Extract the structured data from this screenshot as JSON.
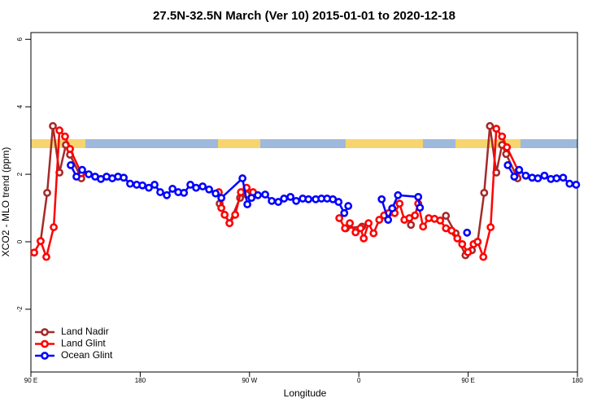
{
  "chart_data": {
    "type": "line",
    "title": "27.5N-32.5N March (Ver 10)   2015-01-01 to 2020-12-18",
    "x_label": "Longitude",
    "y_label": "XCO2 - MLO trend (ppm)",
    "xlim": [
      90,
      540
    ],
    "xticks": [
      {
        "value": 90,
        "label": "90 E"
      },
      {
        "value": 180,
        "label": "180"
      },
      {
        "value": 270,
        "label": "90 W"
      },
      {
        "value": 360,
        "label": "0"
      },
      {
        "value": 450,
        "label": "90 E"
      },
      {
        "value": 540,
        "label": "180"
      }
    ],
    "ylim": [
      -3.86,
      6.2
    ],
    "yticks": [
      -2,
      0,
      2,
      4,
      6
    ],
    "legend": "bottom-left",
    "series": [
      {
        "name": "Land Nadir",
        "color": "#a52a2a",
        "x": [
          98,
          103.4,
          108.1,
          113.5,
          118.8,
          122.2,
          131.5,
          null,
          245.4,
          253.5,
          262.2,
          267.6,
          null,
          349.3,
          362.7,
          null,
          402.9,
          null,
          431.7,
          439.7,
          447.8,
          453.1,
          457.8,
          463.2,
          467.9,
          473.2,
          477.9,
          481.3,
          490.7
        ],
        "values": [
          0.02,
          1.45,
          3.43,
          2.05,
          2.87,
          2.58,
          1.88,
          null,
          1.13,
          0.55,
          1.3,
          1.4,
          null,
          0.4,
          0.45,
          null,
          0.5,
          null,
          0.77,
          0.25,
          -0.4,
          -0.25,
          0,
          1.45,
          3.43,
          2.05,
          2.87,
          2.6,
          1.88
        ]
      },
      {
        "name": "Land Glint",
        "color": "#ff0000",
        "x": [
          92.7,
          98,
          102.7,
          108.8,
          113.5,
          118.1,
          122.2,
          131.5,
          null,
          244.7,
          246.8,
          249.5,
          253.5,
          258.2,
          262.9,
          267.6,
          272.9,
          null,
          343.9,
          348.6,
          352.6,
          357.3,
          361.4,
          364,
          368,
          372.1,
          376.8,
          380.8,
          384.8,
          389.5,
          393.5,
          397.5,
          401.6,
          406.2,
          408.9,
          412.9,
          417.6,
          422.3,
          427,
          431.7,
          436.4,
          441.1,
          445.1,
          449.8,
          454.5,
          457.8,
          462.5,
          468.5,
          473.2,
          477.9,
          481.9,
          491.3
        ],
        "values": [
          -0.32,
          0.02,
          -0.45,
          0.43,
          3.3,
          3.12,
          2.75,
          2.03,
          null,
          1.47,
          1.0,
          0.8,
          0.55,
          0.8,
          1.47,
          1.6,
          1.47,
          null,
          0.7,
          0.4,
          0.55,
          0.28,
          0.4,
          0.1,
          0.55,
          0.25,
          0.65,
          0.78,
          0.85,
          0.85,
          1.13,
          0.65,
          0.7,
          0.78,
          1.13,
          0.45,
          0.7,
          0.68,
          0.63,
          0.4,
          0.33,
          0.1,
          -0.07,
          -0.31,
          -0.07,
          0,
          -0.45,
          0.43,
          3.35,
          3.12,
          2.8,
          2.1
        ]
      },
      {
        "name": "Ocean Glint",
        "color": "#0000ff",
        "x": [
          122.8,
          127.5,
          132.2,
          137.6,
          142.9,
          147.6,
          152.3,
          157,
          161.7,
          166.4,
          171.7,
          177.1,
          181.8,
          187.1,
          191.8,
          196.5,
          201.9,
          206.6,
          211.3,
          216,
          221.3,
          226,
          231.4,
          236.7,
          242.1,
          246.8,
          264.2,
          268.2,
          271.6,
          276.9,
          282.9,
          288.3,
          293.7,
          298.4,
          303.7,
          308.4,
          313.8,
          318.5,
          324.5,
          329.2,
          333.9,
          338.6,
          343.3,
          348,
          351.3,
          null,
          378.8,
          384.1,
          387.5,
          392.2,
          408.9,
          410.3,
          null,
          449.1,
          null,
          482.6,
          488,
          492,
          497.4,
          502.7,
          507.4,
          512.8,
          518.1,
          522.8,
          528.2,
          533.5,
          538.9
        ],
        "values": [
          2.27,
          1.93,
          2.13,
          2.0,
          1.93,
          1.86,
          1.93,
          1.88,
          1.93,
          1.9,
          1.72,
          1.69,
          1.67,
          1.6,
          1.69,
          1.47,
          1.38,
          1.57,
          1.47,
          1.45,
          1.69,
          1.6,
          1.64,
          1.55,
          1.43,
          1.3,
          1.88,
          1.11,
          1.3,
          1.38,
          1.4,
          1.21,
          1.18,
          1.28,
          1.33,
          1.21,
          1.28,
          1.26,
          1.26,
          1.28,
          1.28,
          1.26,
          1.18,
          0.85,
          1.06,
          null,
          1.26,
          0.65,
          0.99,
          1.38,
          1.33,
          1.01,
          null,
          0.27,
          null,
          2.27,
          1.93,
          2.13,
          1.96,
          1.9,
          1.88,
          1.96,
          1.86,
          1.88,
          1.9,
          1.72,
          1.69
        ]
      }
    ]
  }
}
